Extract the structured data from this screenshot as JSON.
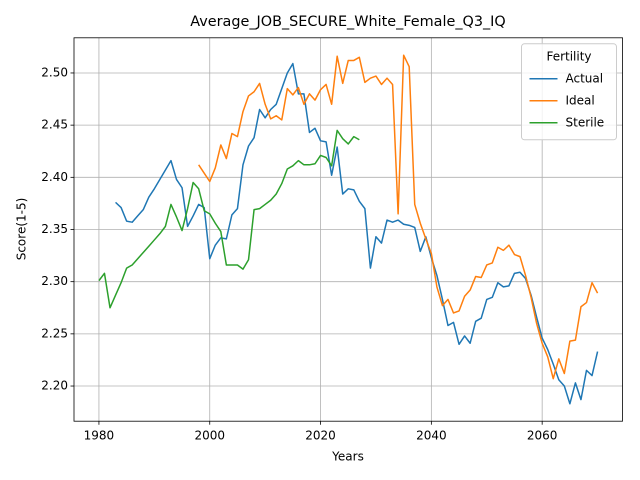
{
  "chart_data": {
    "type": "line",
    "title": "Average_JOB_SECURE_White_Female_Q3_IQ",
    "xlabel": "Years",
    "ylabel": "Score(1-5)",
    "legend_title": "Fertility",
    "legend": "upper right",
    "grid": true,
    "xlim": [
      1975.5,
      2074.5
    ],
    "xticks": [
      1980,
      2000,
      2020,
      2040,
      2060
    ],
    "ylim": [
      2.1663,
      2.5337
    ],
    "yticks": [
      {
        "value": 2.2,
        "label": "2.20"
      },
      2.25,
      {
        "value": 2.3,
        "label": "2.30"
      },
      2.35,
      {
        "value": 2.4,
        "label": "2.40"
      },
      2.45,
      {
        "value": 2.5,
        "label": "2.50"
      }
    ],
    "x": [
      1980,
      1981,
      1982,
      1983,
      1984,
      1985,
      1986,
      1987,
      1988,
      1989,
      1990,
      1991,
      1992,
      1993,
      1994,
      1995,
      1996,
      1997,
      1998,
      1999,
      2000,
      2001,
      2002,
      2003,
      2004,
      2005,
      2006,
      2007,
      2008,
      2009,
      2010,
      2011,
      2012,
      2013,
      2014,
      2015,
      2016,
      2017,
      2018,
      2019,
      2020,
      2021,
      2022,
      2023,
      2024,
      2025,
      2026,
      2027,
      2028,
      2029,
      2030,
      2031,
      2032,
      2033,
      2034,
      2035,
      2036,
      2037,
      2038,
      2039,
      2040,
      2041,
      2042,
      2043,
      2044,
      2045,
      2046,
      2047,
      2048,
      2049,
      2050,
      2051,
      2052,
      2053,
      2054,
      2055,
      2056,
      2057,
      2058,
      2059,
      2060,
      2061,
      2062,
      2063,
      2064,
      2065,
      2066,
      2067,
      2068,
      2069,
      2070
    ],
    "series": [
      {
        "name": "Actual",
        "color": "#1f77b4",
        "values": [
          null,
          null,
          null,
          2.376,
          2.371,
          2.358,
          2.357,
          2.363,
          2.369,
          2.381,
          2.389,
          2.398,
          2.407,
          2.416,
          2.398,
          2.39,
          2.353,
          2.363,
          2.374,
          2.371,
          2.322,
          2.335,
          2.342,
          2.341,
          2.364,
          2.37,
          2.412,
          2.43,
          2.438,
          2.465,
          2.457,
          2.465,
          2.47,
          2.485,
          2.5,
          2.509,
          2.48,
          2.48,
          2.443,
          2.447,
          2.435,
          2.434,
          2.402,
          2.429,
          2.384,
          2.389,
          2.388,
          2.377,
          2.37,
          2.313,
          2.343,
          2.337,
          2.359,
          2.357,
          2.359,
          2.355,
          2.354,
          2.352,
          2.329,
          2.343,
          2.323,
          2.306,
          2.283,
          2.258,
          2.261,
          2.24,
          2.248,
          2.241,
          2.262,
          2.265,
          2.283,
          2.285,
          2.299,
          2.295,
          2.296,
          2.308,
          2.309,
          2.303,
          2.287,
          2.266,
          2.246,
          2.235,
          2.221,
          2.206,
          2.2,
          2.183,
          2.203,
          2.187,
          2.215,
          2.21,
          2.233
        ]
      },
      {
        "name": "Ideal",
        "color": "#ff7f0e",
        "values": [
          null,
          null,
          null,
          null,
          null,
          null,
          null,
          null,
          null,
          null,
          null,
          null,
          null,
          null,
          null,
          null,
          null,
          null,
          2.412,
          2.404,
          2.396,
          2.409,
          2.431,
          2.418,
          2.442,
          2.439,
          2.463,
          2.478,
          2.482,
          2.49,
          2.47,
          2.456,
          2.459,
          2.455,
          2.485,
          2.479,
          2.486,
          2.47,
          2.48,
          2.474,
          2.484,
          2.489,
          2.47,
          2.516,
          2.49,
          2.512,
          2.512,
          2.515,
          2.491,
          2.495,
          2.497,
          2.489,
          2.495,
          2.489,
          2.365,
          2.517,
          2.506,
          2.374,
          2.356,
          2.341,
          2.327,
          2.295,
          2.277,
          2.283,
          2.27,
          2.272,
          2.286,
          2.292,
          2.305,
          2.304,
          2.316,
          2.318,
          2.333,
          2.33,
          2.335,
          2.326,
          2.324,
          2.306,
          2.285,
          2.26,
          2.241,
          2.228,
          2.207,
          2.226,
          2.212,
          2.243,
          2.244,
          2.276,
          2.28,
          2.299,
          2.289
        ]
      },
      {
        "name": "Sterile",
        "color": "#2ca02c",
        "values": [
          2.301,
          2.308,
          2.275,
          2.287,
          2.299,
          2.313,
          2.316,
          2.322,
          2.328,
          2.334,
          2.34,
          2.346,
          2.353,
          2.374,
          2.362,
          2.349,
          2.37,
          2.395,
          2.389,
          2.368,
          2.365,
          2.356,
          2.348,
          2.316,
          2.316,
          2.316,
          2.312,
          2.321,
          2.369,
          2.37,
          2.374,
          2.378,
          2.384,
          2.394,
          2.408,
          2.411,
          2.416,
          2.412,
          2.412,
          2.413,
          2.421,
          2.419,
          2.411,
          2.445,
          2.437,
          2.432,
          2.439,
          2.436,
          null,
          null,
          null,
          null,
          null,
          null,
          null,
          null,
          null,
          null,
          null,
          null,
          null,
          null,
          null,
          null,
          null,
          null,
          null,
          null,
          null,
          null,
          null,
          null,
          null,
          null,
          null,
          null,
          null,
          null,
          null,
          null,
          null,
          null,
          null,
          null,
          null,
          null,
          null,
          null,
          null,
          null,
          null
        ]
      }
    ]
  }
}
